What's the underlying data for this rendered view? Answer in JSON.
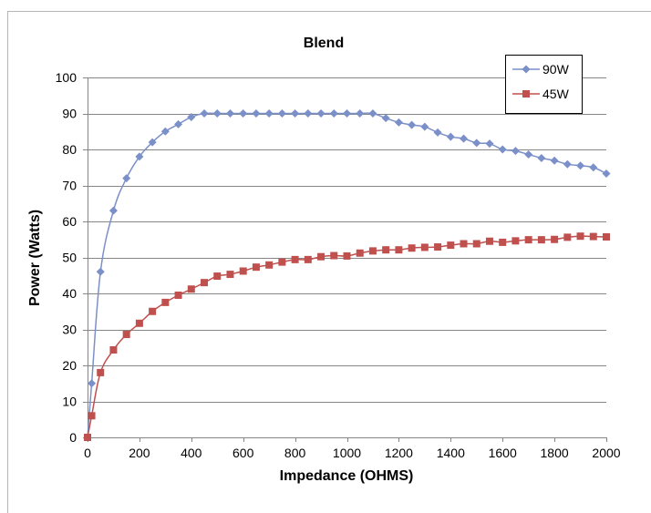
{
  "chart_data": {
    "type": "line",
    "title": "Blend",
    "xlabel": "Impedance (OHMS)",
    "ylabel": "Power (Watts)",
    "xlim": [
      0,
      2000
    ],
    "ylim": [
      0,
      100
    ],
    "xticks": [
      0,
      200,
      400,
      600,
      800,
      1000,
      1200,
      1400,
      1600,
      1800,
      2000
    ],
    "yticks": [
      0,
      10,
      20,
      30,
      40,
      50,
      60,
      70,
      80,
      90,
      100
    ],
    "grid": "horizontal",
    "legend_position": "top-right",
    "series": [
      {
        "name": "90W",
        "color": "#7b8fc9",
        "marker": "diamond",
        "x": [
          0,
          16,
          50,
          100,
          150,
          200,
          250,
          300,
          350,
          400,
          450,
          500,
          550,
          600,
          650,
          700,
          750,
          800,
          850,
          900,
          950,
          1000,
          1050,
          1100,
          1150,
          1200,
          1250,
          1300,
          1350,
          1400,
          1450,
          1500,
          1550,
          1600,
          1650,
          1700,
          1750,
          1800,
          1850,
          1900,
          1950,
          2000
        ],
        "values": [
          0,
          15,
          46,
          63,
          72,
          78,
          82,
          85,
          87,
          89,
          90,
          90,
          90,
          90,
          90,
          90,
          90,
          90,
          90,
          90,
          90,
          90,
          90,
          90,
          88.7,
          87.5,
          86.8,
          86.3,
          84.7,
          83.5,
          83,
          81.8,
          81.6,
          80,
          79.6,
          78.6,
          77.6,
          76.9,
          75.9,
          75.5,
          75,
          73.3
        ]
      },
      {
        "name": "45W",
        "color": "#c0504d",
        "marker": "square",
        "x": [
          0,
          16,
          50,
          100,
          150,
          200,
          250,
          300,
          350,
          400,
          450,
          500,
          550,
          600,
          650,
          700,
          750,
          800,
          850,
          900,
          950,
          1000,
          1050,
          1100,
          1150,
          1200,
          1250,
          1300,
          1350,
          1400,
          1450,
          1500,
          1550,
          1600,
          1650,
          1700,
          1750,
          1800,
          1850,
          1900,
          1950,
          2000
        ],
        "values": [
          0,
          6,
          18,
          24.3,
          28.6,
          31.7,
          35,
          37.5,
          39.5,
          41.2,
          43,
          44.8,
          45.3,
          46.2,
          47.3,
          47.9,
          48.7,
          49.4,
          49.4,
          50.2,
          50.5,
          50.4,
          51.2,
          51.8,
          52.1,
          52.1,
          52.6,
          52.8,
          52.9,
          53.4,
          53.8,
          53.8,
          54.5,
          54.2,
          54.6,
          54.9,
          54.9,
          55,
          55.6,
          55.9,
          55.8,
          55.7
        ]
      }
    ]
  }
}
